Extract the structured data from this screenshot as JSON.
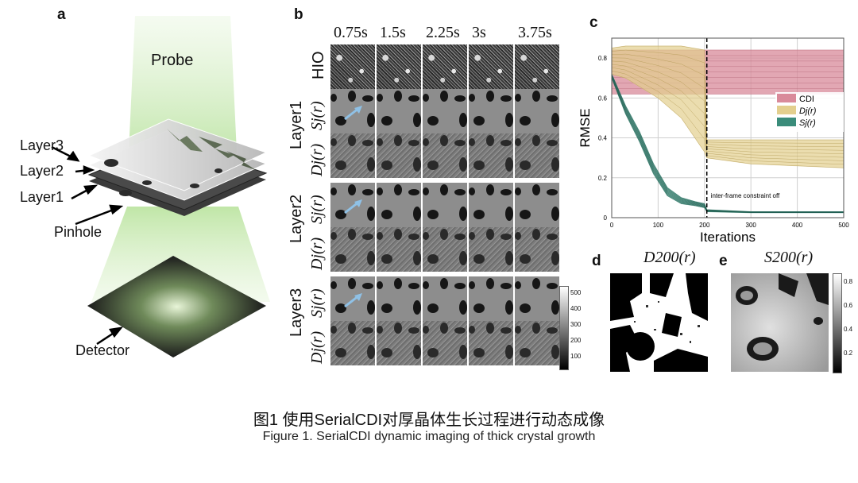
{
  "panel_a": {
    "label": "a",
    "probe": "Probe",
    "layers": [
      "Layer3",
      "Layer2",
      "Layer1"
    ],
    "pinhole": "Pinhole",
    "detector": "Detector"
  },
  "panel_b": {
    "label": "b",
    "times": [
      "0.75s",
      "1.5s",
      "2.25s",
      "3s",
      "3.75s"
    ],
    "hio_label": "HIO",
    "groups": [
      {
        "layer": "Layer1",
        "rows": [
          "Sj(r)",
          "Dj(r)"
        ]
      },
      {
        "layer": "Layer2",
        "rows": [
          "Sj(r)",
          "Dj(r)"
        ]
      },
      {
        "layer": "Layer3",
        "rows": [
          "Sj(r)",
          "Dj(r)"
        ]
      }
    ],
    "colorbar_ticks": [
      "500",
      "400",
      "300",
      "200",
      "100"
    ]
  },
  "panel_c": {
    "label": "c",
    "chart_data": {
      "type": "line",
      "title": "",
      "xlabel": "Iterations",
      "ylabel": "RMSE",
      "xlim": [
        0,
        500
      ],
      "ylim": [
        0,
        0.9
      ],
      "xticks": [
        "0",
        "100",
        "200",
        "300",
        "400",
        "500"
      ],
      "yticks": [
        "0",
        "0.2",
        "0.4",
        "0.6",
        "0.8"
      ],
      "annotation": "inter-frame constraint off",
      "annotation_x": 205,
      "legend": [
        "CDI",
        "Dj(r)",
        "Sj(r)"
      ],
      "legend_position": "right",
      "series": [
        {
          "name": "CDI",
          "color": "#d98a9a",
          "x": [
            0,
            500
          ],
          "upper": [
            0.84,
            0.84
          ],
          "lower": [
            0.62,
            0.62
          ]
        },
        {
          "name": "Dj(r)",
          "color": "#e3cf8e",
          "x": [
            0,
            30,
            100,
            150,
            200,
            205,
            300,
            400,
            500
          ],
          "upper": [
            0.85,
            0.86,
            0.86,
            0.86,
            0.84,
            0.39,
            0.39,
            0.39,
            0.39
          ],
          "lower": [
            0.72,
            0.7,
            0.6,
            0.5,
            0.33,
            0.3,
            0.27,
            0.26,
            0.25
          ]
        },
        {
          "name": "Sj(r)",
          "color": "#3a8c7a",
          "x": [
            0,
            30,
            60,
            90,
            120,
            150,
            180,
            200,
            205,
            300,
            400,
            500
          ],
          "upper": [
            0.72,
            0.56,
            0.43,
            0.27,
            0.15,
            0.1,
            0.08,
            0.07,
            0.04,
            0.03,
            0.03,
            0.03
          ],
          "lower": [
            0.7,
            0.52,
            0.38,
            0.22,
            0.11,
            0.07,
            0.06,
            0.05,
            0.03,
            0.025,
            0.025,
            0.025
          ]
        }
      ]
    }
  },
  "panel_d": {
    "label": "d",
    "title": "D200(r)"
  },
  "panel_e": {
    "label": "e",
    "title": "S200(r)",
    "colorbar_ticks": [
      "0.8",
      "0.6",
      "0.4",
      "0.2"
    ]
  },
  "caption": {
    "cn": "图1 使用SerialCDI对厚晶体生长过程进行动态成像",
    "en": "Figure 1. SerialCDI dynamic imaging of thick crystal growth"
  }
}
